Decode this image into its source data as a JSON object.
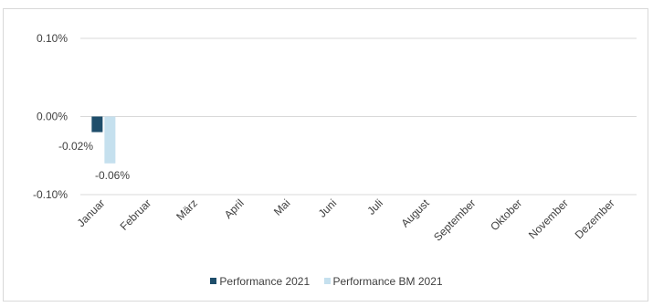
{
  "chart_data": {
    "type": "bar",
    "categories": [
      "Januar",
      "Februar",
      "März",
      "April",
      "Mai",
      "Juni",
      "Juli",
      "August",
      "September",
      "Oktober",
      "November",
      "Dezember"
    ],
    "series": [
      {
        "name": "Performance 2021",
        "color": "#1f4e6b",
        "values": [
          -0.02,
          null,
          null,
          null,
          null,
          null,
          null,
          null,
          null,
          null,
          null,
          null
        ],
        "labels": [
          "-0.02%"
        ]
      },
      {
        "name": "Performance BM 2021",
        "color": "#c5e0ee",
        "values": [
          -0.06,
          null,
          null,
          null,
          null,
          null,
          null,
          null,
          null,
          null,
          null,
          null
        ],
        "labels": [
          "-0.06%"
        ]
      }
    ],
    "yticks": [
      {
        "value": 0.1,
        "label": "0.10%"
      },
      {
        "value": 0.0,
        "label": "0.00%"
      },
      {
        "value": -0.1,
        "label": "-0.10%"
      }
    ],
    "ylim": [
      -0.1,
      0.1
    ],
    "grid": true,
    "legend_position": "bottom"
  }
}
